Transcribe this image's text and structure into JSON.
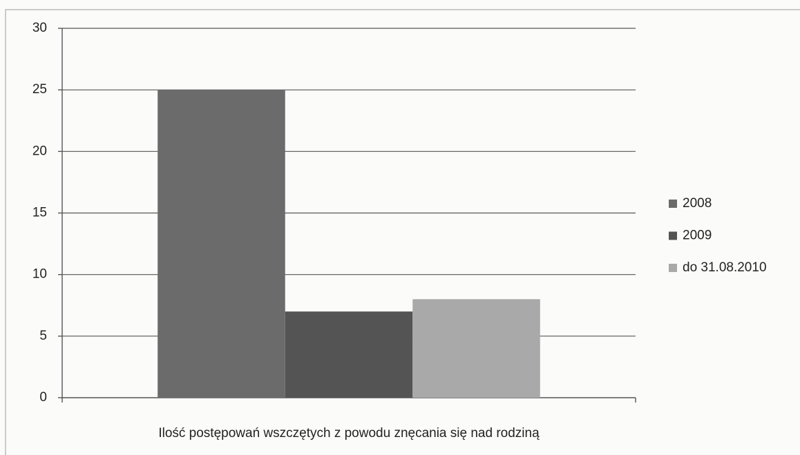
{
  "chart_data": {
    "type": "bar",
    "categories": [
      "Ilość postępowań wszczętych z powodu znęcania się nad rodziną"
    ],
    "series": [
      {
        "name": "2008",
        "color": "#6b6b6b",
        "values": [
          25
        ]
      },
      {
        "name": "2009",
        "color": "#545454",
        "values": [
          7
        ]
      },
      {
        "name": "do 31.08.2010",
        "color": "#a9a9a9",
        "values": [
          8
        ]
      }
    ],
    "ylim": [
      0,
      30
    ],
    "yticks": [
      0,
      5,
      10,
      15,
      20,
      25,
      30
    ],
    "grid": true,
    "legend": "right"
  }
}
